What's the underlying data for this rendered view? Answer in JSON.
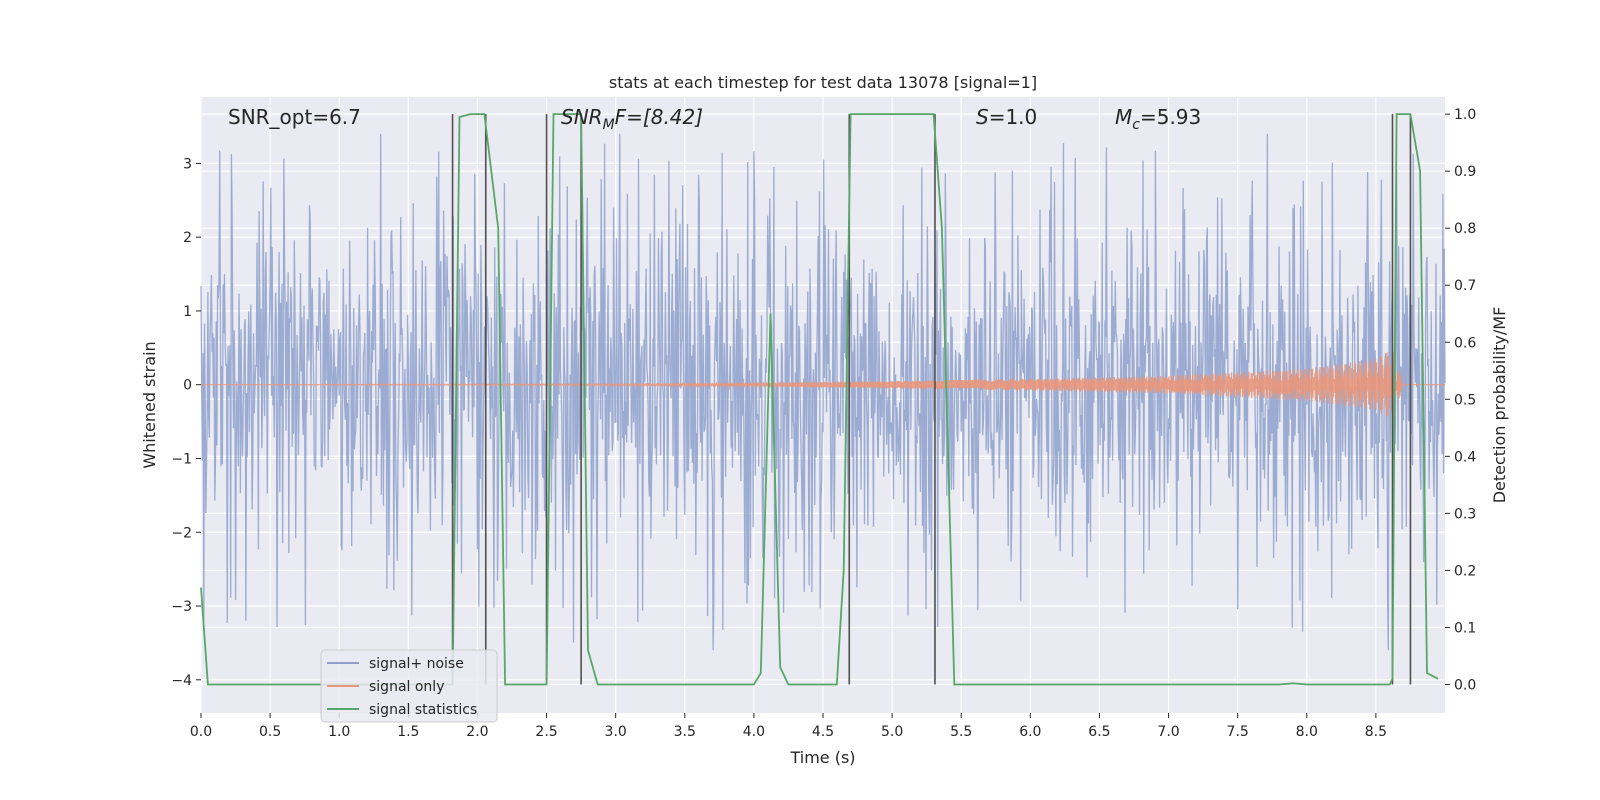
{
  "chart_data": {
    "type": "line",
    "title": "stats at each timestep for test data 13078 [signal=1]",
    "xlabel": "Time (s)",
    "ylabel_left": "Whitened strain",
    "ylabel_right": "Detection probability/MF",
    "xlim": [
      0.0,
      9.0
    ],
    "ylim_left": [
      -4.45,
      3.9
    ],
    "ylim_right": [
      -0.05,
      1.03
    ],
    "grid": true,
    "legend_position": "lower-left",
    "x_ticks": [
      "0.0",
      "0.5",
      "1.0",
      "1.5",
      "2.0",
      "2.5",
      "3.0",
      "3.5",
      "4.0",
      "4.5",
      "5.0",
      "5.5",
      "6.0",
      "6.5",
      "7.0",
      "7.5",
      "8.0",
      "8.5"
    ],
    "y_ticks_left": [
      "3",
      "2",
      "1",
      "0",
      "−1",
      "−2",
      "−3",
      "−4"
    ],
    "y_ticks_right": [
      "1.0",
      "0.9",
      "0.8",
      "0.7",
      "0.6",
      "0.5",
      "0.4",
      "0.3",
      "0.2",
      "0.1",
      "0.0"
    ],
    "annotations": {
      "snr_opt": "SNR_opt=6.7",
      "snr_mf_main": "SNR",
      "snr_mf_sub": "M",
      "snr_mf_tail": "F=[8.42]",
      "s_main": "S",
      "s_tail": "=1.0",
      "mc_main": "M",
      "mc_sub": "c",
      "mc_tail": "=5.93"
    },
    "series": [
      {
        "name": "signal+ noise",
        "color": "#8da0cb",
        "envelope": {
          "typical_abs": 1.8,
          "peak_abs": 3.3
        }
      },
      {
        "name": "signal only",
        "color": "#e9967a",
        "chirp_amplitude": [
          [
            0.0,
            0.0
          ],
          [
            3.0,
            0.01
          ],
          [
            4.0,
            0.02
          ],
          [
            5.0,
            0.05
          ],
          [
            6.0,
            0.08
          ],
          [
            7.0,
            0.12
          ],
          [
            8.0,
            0.22
          ],
          [
            8.5,
            0.35
          ],
          [
            8.62,
            0.48
          ],
          [
            8.7,
            0.0
          ],
          [
            9.0,
            0.0
          ]
        ]
      },
      {
        "name": "signal statistics",
        "color": "#55a868",
        "x": [
          0.0,
          0.05,
          0.1,
          1.78,
          1.82,
          1.87,
          1.95,
          2.05,
          2.15,
          2.2,
          2.5,
          2.55,
          2.75,
          2.8,
          2.87,
          4.0,
          4.05,
          4.12,
          4.19,
          4.25,
          4.6,
          4.65,
          4.7,
          5.3,
          5.36,
          5.45,
          7.8,
          7.9,
          8.0,
          8.6,
          8.62,
          8.65,
          8.75,
          8.82,
          8.87,
          8.95
        ],
        "y": [
          0.17,
          0.0,
          0.0,
          0.0,
          0.0,
          0.995,
          1.0,
          1.0,
          0.8,
          0.0,
          0.0,
          1.0,
          1.0,
          0.06,
          0.0,
          0.0,
          0.02,
          0.65,
          0.03,
          0.0,
          0.0,
          0.2,
          1.0,
          1.0,
          0.8,
          0.0,
          0.0,
          0.002,
          0.0,
          0.0,
          0.01,
          1.0,
          1.0,
          0.9,
          0.02,
          0.01
        ]
      }
    ],
    "vertical_lines_x": [
      1.82,
      2.06,
      2.5,
      2.75,
      4.69,
      5.31,
      8.62,
      8.75
    ],
    "vertical_line_color": "#505050"
  }
}
